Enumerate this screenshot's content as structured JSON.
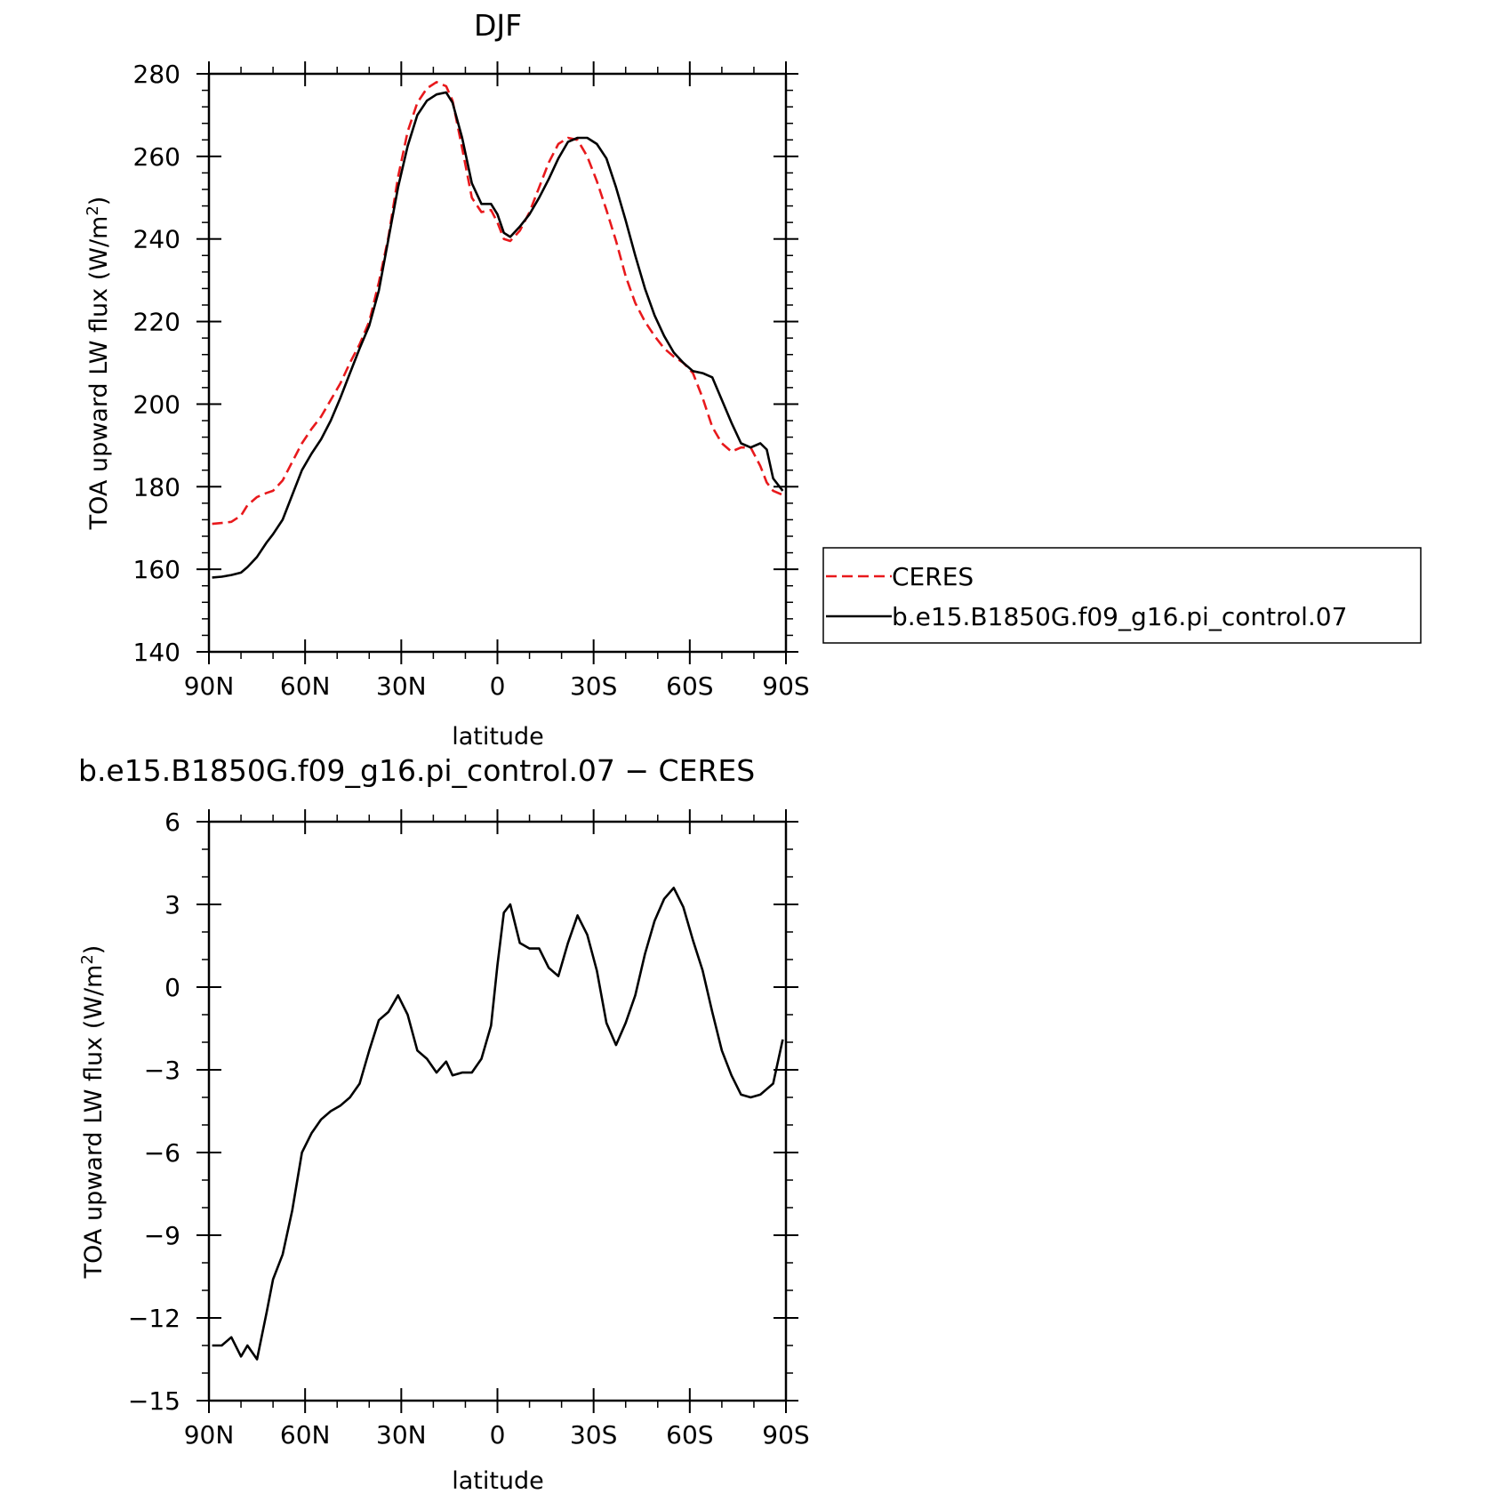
{
  "chart_data": [
    {
      "type": "line",
      "title": "DJF",
      "xlabel": "latitude",
      "ylabel": "TOA upward LW flux (W/m",
      "ylabel_sup": "2",
      "ylabel_tail": ")",
      "xlim": [
        90,
        -90
      ],
      "ylim": [
        140,
        280
      ],
      "x_ticks": [
        {
          "value": 90,
          "label": "90N"
        },
        {
          "value": 60,
          "label": "60N"
        },
        {
          "value": 30,
          "label": "30N"
        },
        {
          "value": 0,
          "label": "0"
        },
        {
          "value": -30,
          "label": "30S"
        },
        {
          "value": -60,
          "label": "60S"
        },
        {
          "value": -90,
          "label": "90S"
        }
      ],
      "y_ticks": [
        {
          "value": 280,
          "label": "280"
        },
        {
          "value": 260,
          "label": "260"
        },
        {
          "value": 240,
          "label": "240"
        },
        {
          "value": 220,
          "label": "220"
        },
        {
          "value": 200,
          "label": "200"
        },
        {
          "value": 180,
          "label": "180"
        },
        {
          "value": 160,
          "label": "160"
        },
        {
          "value": 140,
          "label": "140"
        }
      ],
      "legend": "right",
      "series": [
        {
          "name": "CERES",
          "color": "#e8191c",
          "style": "dashed",
          "x": [
            89,
            86,
            83,
            80,
            78,
            75,
            72,
            70,
            67,
            64,
            61,
            58,
            55,
            52,
            49,
            46,
            43,
            40,
            37,
            34,
            31,
            28,
            25,
            22,
            19,
            16,
            14,
            11,
            8,
            5,
            2,
            0,
            -2,
            -4,
            -7,
            -10,
            -13,
            -16,
            -19,
            -22,
            -25,
            -28,
            -31,
            -34,
            -37,
            -40,
            -43,
            -46,
            -49,
            -52,
            -55,
            -58,
            -61,
            -64,
            -67,
            -70,
            -73,
            -76,
            -79,
            -82,
            -84,
            -86,
            -89
          ],
          "y": [
            171,
            171.2,
            171.5,
            173,
            175.5,
            177.5,
            178.5,
            179,
            181.5,
            186,
            190.5,
            194,
            197,
            201,
            205,
            210,
            214.5,
            220,
            229.5,
            240.5,
            255,
            266,
            273,
            276.5,
            278,
            277,
            273.5,
            262,
            250,
            246.5,
            247,
            244,
            240,
            239.5,
            242,
            246.5,
            252.5,
            258.5,
            263,
            264.5,
            264,
            260,
            254,
            247,
            239.5,
            231,
            224.5,
            220,
            216.5,
            213.5,
            211.5,
            210,
            207.5,
            201.5,
            194.5,
            190.5,
            188.5,
            189.5,
            189.5,
            185,
            181,
            179,
            178
          ]
        },
        {
          "name": "b.e15.B1850G.f09_g16.pi_control.07",
          "color": "#000000",
          "style": "solid",
          "x": [
            89,
            86,
            83,
            80,
            78,
            75,
            72,
            70,
            67,
            64,
            61,
            58,
            55,
            52,
            49,
            46,
            43,
            40,
            37,
            34,
            31,
            28,
            25,
            22,
            19,
            16,
            14,
            11,
            8,
            5,
            2,
            0,
            -2,
            -4,
            -7,
            -10,
            -13,
            -16,
            -19,
            -22,
            -25,
            -28,
            -31,
            -34,
            -37,
            -40,
            -43,
            -46,
            -49,
            -52,
            -55,
            -58,
            -61,
            -64,
            -67,
            -70,
            -73,
            -76,
            -79,
            -82,
            -84,
            -86,
            -89
          ],
          "y": [
            158,
            158.2,
            158.6,
            159.2,
            160.5,
            163,
            166.5,
            168.5,
            172,
            178,
            184,
            188,
            191.5,
            196,
            201.5,
            207.5,
            213.5,
            219,
            227.5,
            240,
            252.5,
            262.5,
            270,
            273.5,
            275,
            275.5,
            273,
            264.5,
            253.5,
            248.5,
            248.5,
            246,
            241.5,
            240.5,
            243,
            246,
            250,
            254.5,
            259.5,
            263.5,
            264.5,
            264.5,
            263,
            259.5,
            252.5,
            244.5,
            236,
            228,
            221.5,
            216.5,
            212.5,
            210,
            208,
            207.5,
            206.5,
            201,
            195.5,
            190.5,
            189.5,
            190.5,
            189,
            182,
            179
          ]
        }
      ]
    },
    {
      "type": "line",
      "title": "b.e15.B1850G.f09_g16.pi_control.07 − CERES",
      "xlabel": "latitude",
      "ylabel": "TOA upward LW flux (W/m",
      "ylabel_sup": "2",
      "ylabel_tail": ")",
      "xlim": [
        90,
        -90
      ],
      "ylim": [
        -15,
        6
      ],
      "x_ticks": [
        {
          "value": 90,
          "label": "90N"
        },
        {
          "value": 60,
          "label": "60N"
        },
        {
          "value": 30,
          "label": "30N"
        },
        {
          "value": 0,
          "label": "0"
        },
        {
          "value": -30,
          "label": "30S"
        },
        {
          "value": -60,
          "label": "60S"
        },
        {
          "value": -90,
          "label": "90S"
        }
      ],
      "y_ticks": [
        {
          "value": 6,
          "label": "6"
        },
        {
          "value": 3,
          "label": "3"
        },
        {
          "value": 0,
          "label": "0"
        },
        {
          "value": -3,
          "label": "−3"
        },
        {
          "value": -6,
          "label": "−6"
        },
        {
          "value": -9,
          "label": "−9"
        },
        {
          "value": -12,
          "label": "−12"
        },
        {
          "value": -15,
          "label": "−15"
        }
      ],
      "series": [
        {
          "name": "",
          "color": "#000000",
          "style": "solid",
          "x": [
            89,
            86,
            83,
            80,
            78,
            75,
            72,
            70,
            67,
            64,
            61,
            58,
            55,
            52,
            49,
            46,
            43,
            40,
            37,
            34,
            31,
            28,
            25,
            22,
            19,
            16,
            14,
            11,
            8,
            5,
            2,
            0,
            -2,
            -4,
            -7,
            -10,
            -13,
            -16,
            -19,
            -22,
            -25,
            -28,
            -31,
            -34,
            -37,
            -40,
            -43,
            -46,
            -49,
            -52,
            -55,
            -58,
            -61,
            -64,
            -67,
            -70,
            -73,
            -76,
            -79,
            -82,
            -84,
            -86,
            -89
          ],
          "y": [
            -13,
            -13,
            -12.7,
            -13.4,
            -13,
            -13.5,
            -11.8,
            -10.6,
            -9.7,
            -8.1,
            -6,
            -5.3,
            -4.8,
            -4.5,
            -4.3,
            -4,
            -3.5,
            -2.3,
            -1.2,
            -0.9,
            -0.3,
            -1.0,
            -2.3,
            -2.6,
            -3.1,
            -2.7,
            -3.2,
            -3.1,
            -3.1,
            -2.6,
            -1.4,
            0.8,
            2.7,
            3.0,
            1.6,
            1.4,
            1.4,
            0.7,
            0.4,
            1.6,
            2.6,
            1.9,
            0.6,
            -1.3,
            -2.1,
            -1.3,
            -0.3,
            1.2,
            2.4,
            3.2,
            3.6,
            2.9,
            1.7,
            0.6,
            -0.9,
            -2.3,
            -3.2,
            -3.9,
            -4.0,
            -3.9,
            -3.7,
            -3.5,
            -1.9
          ]
        }
      ]
    }
  ]
}
